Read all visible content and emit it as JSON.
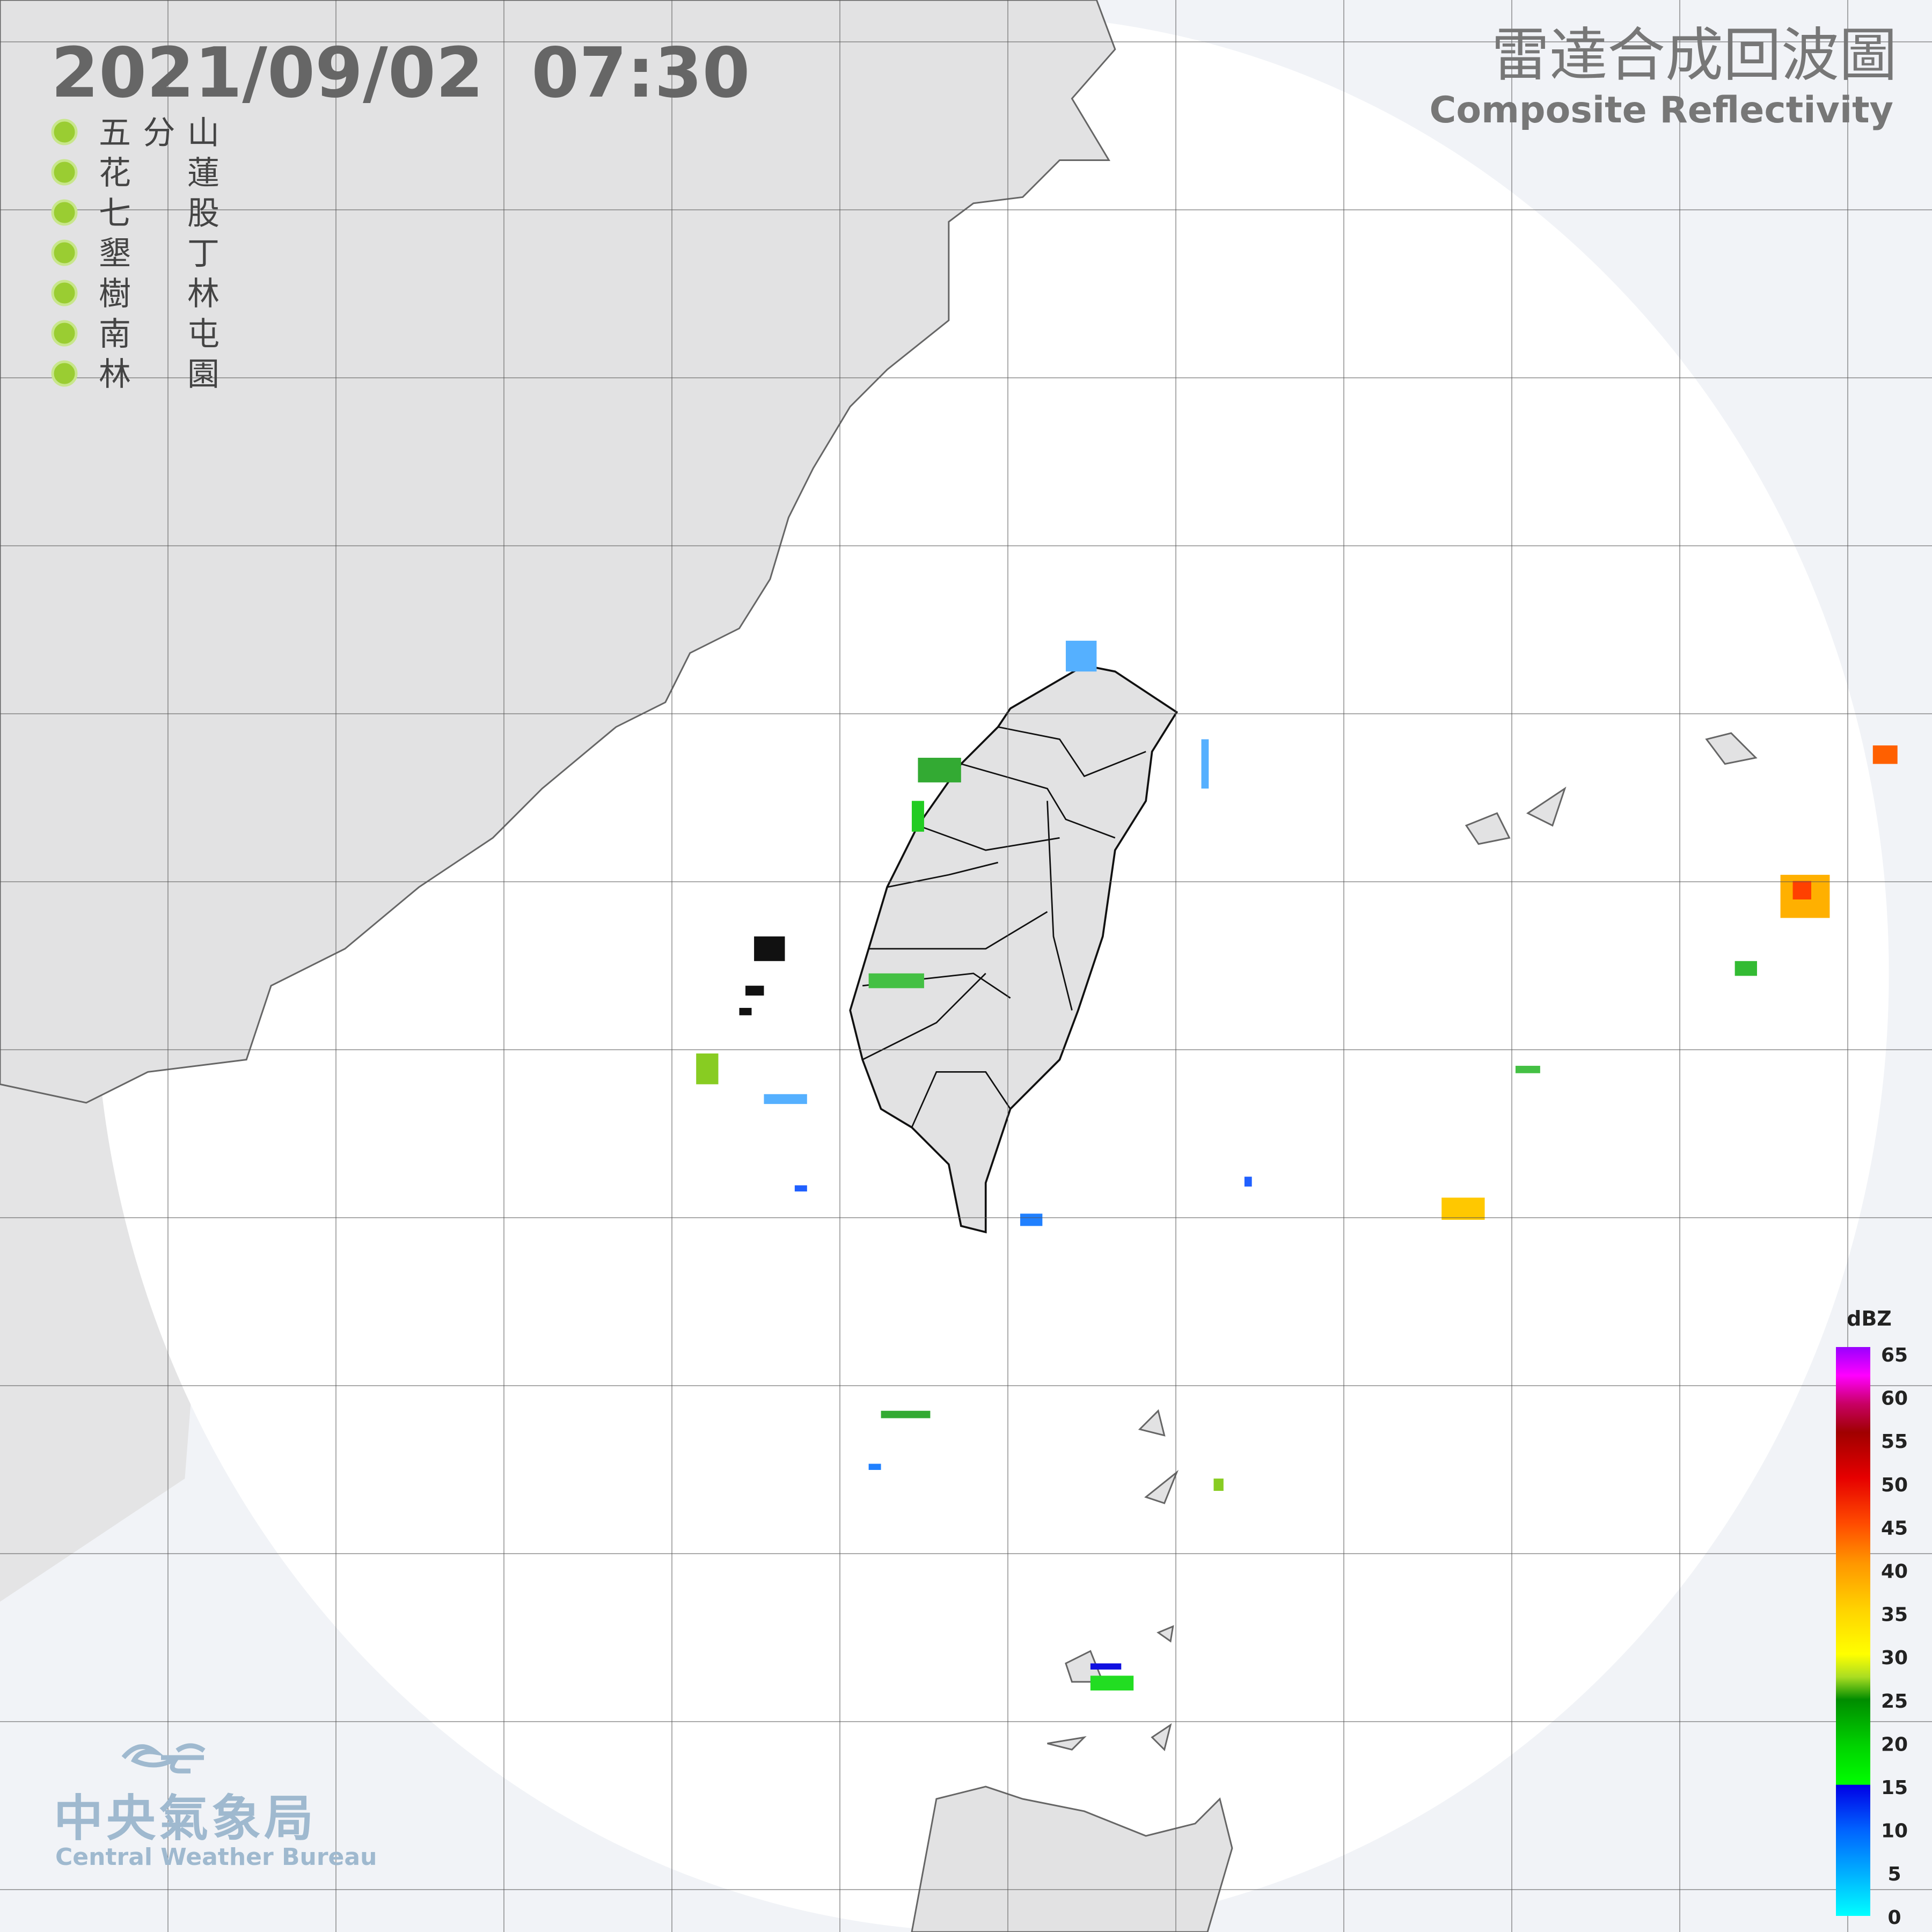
{
  "header": {
    "timestamp": "2021/09/02  07:30",
    "title": "雷達合成回波圖",
    "subtitle": "Composite Reflectivity"
  },
  "stations": [
    "五分山",
    "花蓮",
    "七股",
    "墾丁",
    "樹林",
    "南屯",
    "林園"
  ],
  "legend": {
    "unit": "dBZ",
    "ticks": [
      65,
      60,
      55,
      50,
      45,
      40,
      35,
      30,
      25,
      20,
      15,
      10,
      5,
      0
    ]
  },
  "footer": {
    "name": "中央氣象局",
    "name_en": "Central Weather Bureau"
  }
}
